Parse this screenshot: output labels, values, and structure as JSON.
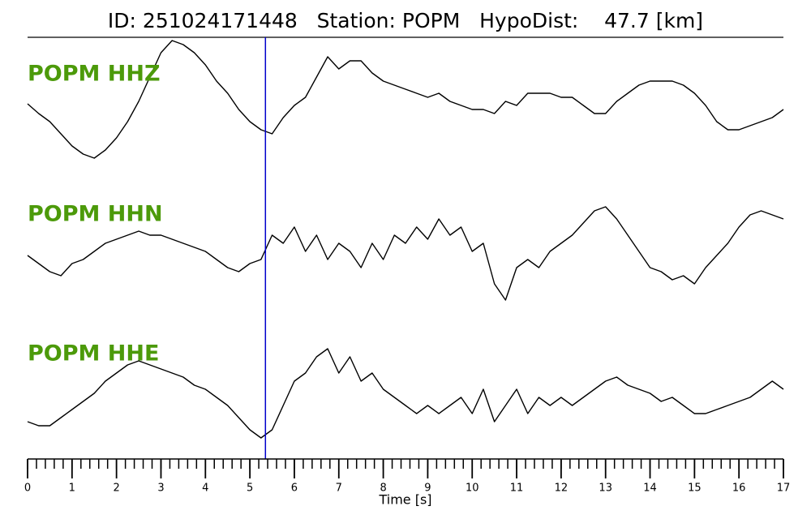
{
  "chart_data": {
    "type": "line",
    "title": "ID: 251024171448   Station: POPM   HypoDist:    47.7 [km]",
    "xlabel": "Time [s]",
    "x": [
      0,
      0.25,
      0.5,
      0.75,
      1,
      1.25,
      1.5,
      1.75,
      2,
      2.25,
      2.5,
      2.75,
      3,
      3.25,
      3.5,
      3.75,
      4,
      4.25,
      4.5,
      4.75,
      5,
      5.25,
      5.5,
      5.75,
      6,
      6.25,
      6.5,
      6.75,
      7,
      7.25,
      7.5,
      7.75,
      8,
      8.25,
      8.5,
      8.75,
      9,
      9.25,
      9.5,
      9.75,
      10,
      10.25,
      10.5,
      10.75,
      11,
      11.25,
      11.5,
      11.75,
      12,
      12.25,
      12.5,
      12.75,
      13,
      13.25,
      13.5,
      13.75,
      14,
      14.25,
      14.5,
      14.75,
      15,
      15.25,
      15.5,
      15.75,
      16,
      16.25,
      16.5,
      16.75,
      17
    ],
    "series": [
      {
        "name": "POPM HHZ",
        "color": "#000000",
        "label_color": "#4c9a0a",
        "values": [
          -6,
          -18,
          -28,
          -43,
          -58,
          -68,
          -73,
          -63,
          -48,
          -28,
          -3,
          27,
          57,
          72,
          67,
          57,
          42,
          22,
          7,
          -13,
          -28,
          -38,
          -43,
          -23,
          -8,
          2,
          27,
          52,
          37,
          47,
          47,
          32,
          22,
          17,
          12,
          7,
          2,
          7,
          -3,
          -8,
          -13,
          -13,
          -18,
          -3,
          -8,
          7,
          7,
          7,
          2,
          2,
          -8,
          -18,
          -18,
          -3,
          7,
          17,
          22,
          22,
          22,
          17,
          7,
          -8,
          -28,
          -38,
          -38,
          -33,
          -28,
          -23,
          -13
        ]
      },
      {
        "name": "POPM HHN",
        "color": "#000000",
        "label_color": "#4c9a0a",
        "values": [
          -5,
          -15,
          -25,
          -30,
          -15,
          -10,
          0,
          10,
          15,
          20,
          25,
          20,
          20,
          15,
          10,
          5,
          0,
          -10,
          -20,
          -25,
          -15,
          -10,
          20,
          10,
          30,
          0,
          20,
          -10,
          10,
          0,
          -20,
          10,
          -10,
          20,
          10,
          30,
          15,
          40,
          20,
          30,
          0,
          10,
          -40,
          -60,
          -20,
          -10,
          -20,
          0,
          10,
          20,
          35,
          50,
          55,
          40,
          20,
          0,
          -20,
          -25,
          -35,
          -30,
          -40,
          -20,
          -5,
          10,
          30,
          45,
          50,
          45,
          40
        ]
      },
      {
        "name": "POPM HHE",
        "color": "#000000",
        "label_color": "#4c9a0a",
        "values": [
          -40,
          -45,
          -45,
          -35,
          -25,
          -15,
          -5,
          10,
          20,
          30,
          35,
          30,
          25,
          20,
          15,
          5,
          0,
          -10,
          -20,
          -35,
          -50,
          -60,
          -50,
          -20,
          10,
          20,
          40,
          50,
          20,
          40,
          10,
          20,
          0,
          -10,
          -20,
          -30,
          -20,
          -30,
          -20,
          -10,
          -30,
          0,
          -40,
          -20,
          0,
          -30,
          -10,
          -20,
          -10,
          -20,
          -10,
          0,
          10,
          15,
          5,
          0,
          -5,
          -15,
          -10,
          -20,
          -30,
          -30,
          -25,
          -20,
          -15,
          -10,
          0,
          10,
          0
        ]
      }
    ],
    "ylim": [
      -85,
      85
    ],
    "xlim": [
      0,
      17
    ],
    "xticks": [
      0,
      1,
      2,
      3,
      4,
      5,
      6,
      7,
      8,
      9,
      10,
      11,
      12,
      13,
      14,
      15,
      16,
      17
    ],
    "minor_tick_step": 0.2,
    "pick_time": 5.35,
    "pick_color": "#0000cc"
  }
}
